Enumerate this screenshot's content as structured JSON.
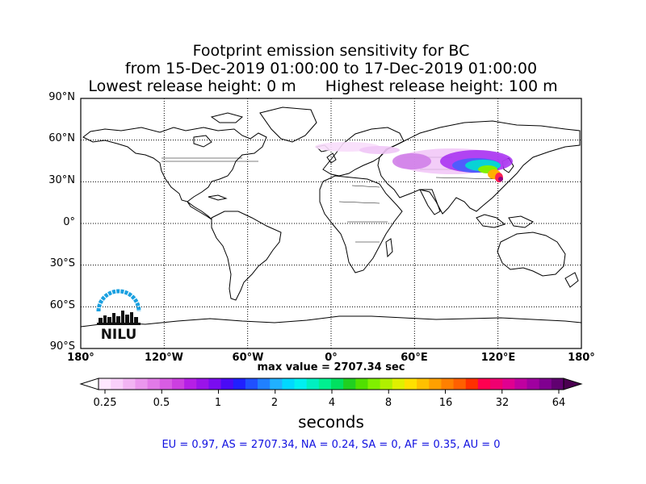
{
  "title": {
    "line1": "Footprint emission sensitivity for BC",
    "line2": "from 15-Dec-2019 01:00:00 to 17-Dec-2019 01:00:00",
    "lowest": "Lowest release height: 0 m",
    "highest": "Highest release height: 100 m"
  },
  "lat_ticks": [
    "90°N",
    "60°N",
    "30°N",
    "0°",
    "30°S",
    "60°S",
    "90°S"
  ],
  "lon_ticks": [
    "180°",
    "120°W",
    "60°W",
    "0°",
    "60°E",
    "120°E",
    "180°"
  ],
  "max_value": "max value = 2707.34 sec",
  "colorbar": {
    "ticks": [
      "0.25",
      "0.5",
      "1",
      "2",
      "4",
      "8",
      "16",
      "32",
      "64"
    ],
    "label": "seconds"
  },
  "regions": "EU = 0.97,  AS = 2707.34,  NA = 0.24,  SA = 0,  AF = 0.35,  AU = 0",
  "logo": {
    "text": "NILU",
    "color": "#1aa0e0"
  },
  "colors": {
    "colorbar": [
      "#ffe8ff",
      "#f9d0fa",
      "#f2b4f3",
      "#eb97ee",
      "#e27ae8",
      "#d85ce3",
      "#cc3fe0",
      "#b51fe6",
      "#9a13ea",
      "#7a0cf0",
      "#4a0af6",
      "#2020ff",
      "#2050ff",
      "#2080ff",
      "#20b0ff",
      "#00d8ff",
      "#00f0f0",
      "#00f0c0",
      "#00f090",
      "#00e060",
      "#20d020",
      "#50e000",
      "#80f000",
      "#b0f000",
      "#e0f000",
      "#ffe000",
      "#ffc000",
      "#ffa000",
      "#ff8000",
      "#ff6000",
      "#ff3000",
      "#ff0050",
      "#f00070",
      "#e00090",
      "#c000a0",
      "#a000a0",
      "#800090",
      "#600070"
    ]
  }
}
